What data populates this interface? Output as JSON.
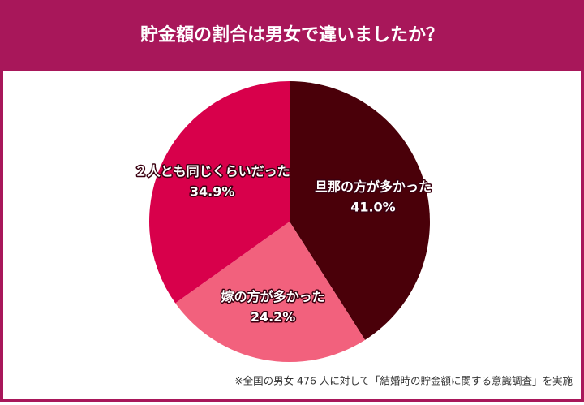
{
  "chart_data": {
    "type": "pie",
    "title": "貯金額の割合は男女で違いましたか？",
    "categories": [
      "旦那の方が多かった",
      "嫁の方が多かった",
      "２人とも同じくらいだった"
    ],
    "values": [
      41.0,
      24.2,
      34.9
    ],
    "value_labels": [
      "41.0%",
      "24.2%",
      "34.9%"
    ],
    "colors": [
      "#4a0009",
      "#f2617d",
      "#d8004b"
    ],
    "footnote": "※全国の男女 476 人に対して「結婚時の貯金額に関する意識調査」を実施"
  }
}
